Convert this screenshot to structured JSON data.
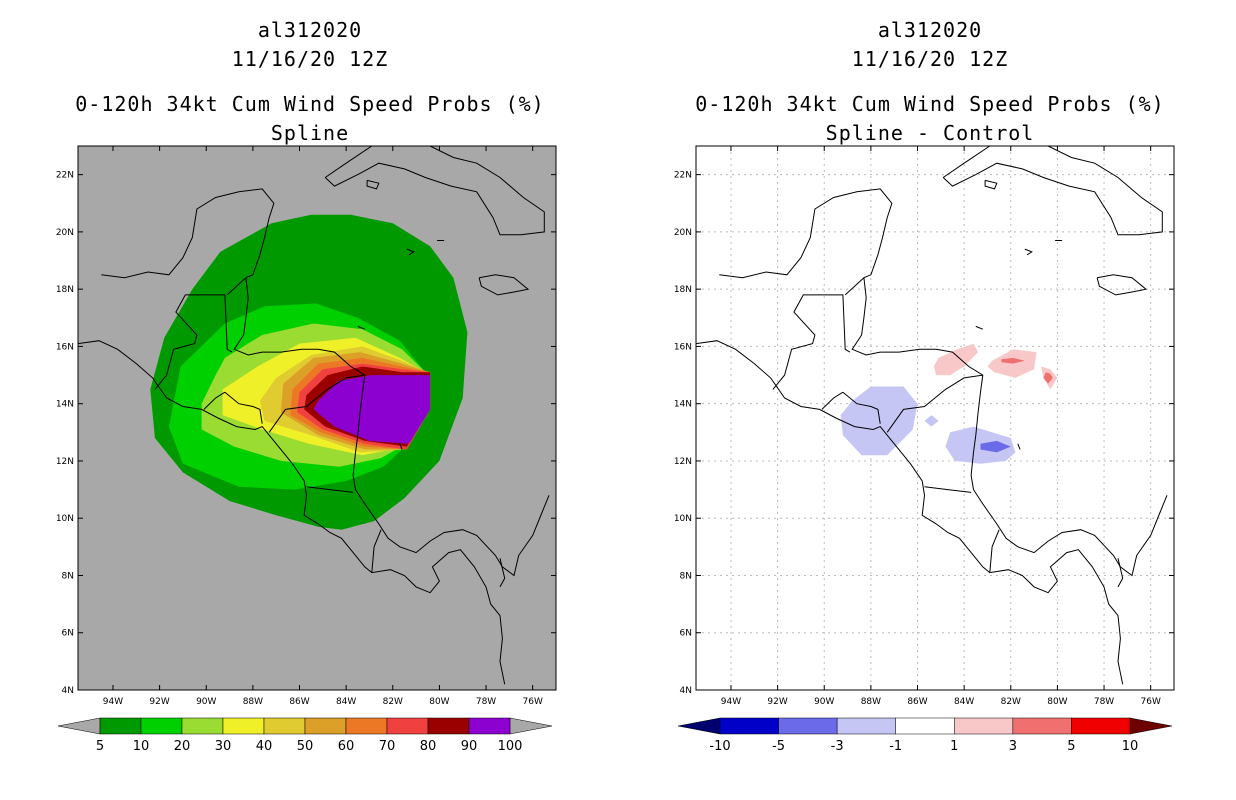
{
  "colors": {
    "land_bg": "#a8a8a8",
    "coast": "#000000",
    "grid": "#bbbbbb"
  },
  "panels": [
    {
      "id": "left",
      "title_lines": [
        "al312020",
        "11/16/20 12Z"
      ],
      "subtitle_lines": [
        "0-120h 34kt Cum Wind Speed Probs (%)",
        "Spline"
      ]
    },
    {
      "id": "right",
      "title_lines": [
        "al312020",
        "11/16/20 12Z"
      ],
      "subtitle_lines": [
        "0-120h 34kt Cum Wind Speed Probs (%)",
        "Spline - Control"
      ]
    }
  ],
  "chart_data": [
    {
      "type": "heatmap",
      "title": "0-120h 34kt Cum Wind Speed Probs (%) — Spline",
      "storm": "al312020",
      "date": "11/16/20 12Z",
      "xlim": [
        -95.5,
        -75
      ],
      "ylim": [
        4,
        23
      ],
      "x_ticks": [
        -94,
        -92,
        -90,
        -88,
        -86,
        -84,
        -82,
        -80,
        -78,
        -76
      ],
      "x_tick_labels": [
        "94W",
        "92W",
        "90W",
        "88W",
        "86W",
        "84W",
        "82W",
        "80W",
        "78W",
        "76W"
      ],
      "y_ticks": [
        4,
        6,
        8,
        10,
        12,
        14,
        16,
        18,
        20,
        22
      ],
      "y_tick_labels": [
        "4N",
        "6N",
        "8N",
        "10N",
        "12N",
        "14N",
        "16N",
        "18N",
        "20N",
        "22N"
      ],
      "grid": false,
      "colorbar": {
        "levels": [
          "5",
          "10",
          "20",
          "30",
          "40",
          "50",
          "60",
          "70",
          "80",
          "90",
          "100"
        ],
        "colors": [
          "#009a00",
          "#00d000",
          "#9adc32",
          "#f0f028",
          "#e0cc30",
          "#dca028",
          "#ec7826",
          "#f04040",
          "#9a0000",
          "#8c00d0"
        ],
        "under_color": "#a8a8a8",
        "over_color": "#a8a8a8"
      },
      "contours": [
        {
          "level": 5,
          "color": "#009a00",
          "lon": [
            -89.4,
            -87.2,
            -85.5,
            -83.8,
            -82,
            -80.4,
            -79.4,
            -78.8,
            -79,
            -80,
            -81.5,
            -82.8,
            -84.2,
            -85.2,
            -87,
            -89,
            -91,
            -92.2,
            -92.4,
            -91.8,
            -90.6
          ],
          "lat": [
            19.3,
            20.3,
            20.6,
            20.6,
            20.3,
            19.5,
            18.4,
            16.5,
            14.2,
            12.0,
            10.7,
            9.9,
            9.6,
            9.7,
            10.1,
            10.6,
            11.6,
            12.8,
            14.5,
            16.3,
            18.0
          ]
        },
        {
          "level": 10,
          "color": "#00d000",
          "lon": [
            -89.2,
            -87.5,
            -85.3,
            -83.5,
            -81.7,
            -80.6,
            -80.4,
            -81.2,
            -82.4,
            -84,
            -86.2,
            -88.6,
            -91,
            -91.6,
            -91.1
          ],
          "lat": [
            16.8,
            17.4,
            17.5,
            17.0,
            16.2,
            15.1,
            13.9,
            12.7,
            11.8,
            11.3,
            11.0,
            11.1,
            11.9,
            13.2,
            15.3
          ]
        },
        {
          "level": 20,
          "color": "#9adc32",
          "lon": [
            -89.2,
            -87.6,
            -85.4,
            -83.3,
            -81.6,
            -80.6,
            -80.5,
            -81.2,
            -82.5,
            -84.3,
            -86.8,
            -88.8,
            -90.2,
            -90.2,
            -89.6
          ],
          "lat": [
            15.6,
            16.4,
            16.8,
            16.6,
            15.9,
            15.1,
            14.0,
            12.7,
            12.1,
            11.8,
            12.0,
            12.5,
            13.1,
            14.0,
            15.0
          ]
        },
        {
          "level": 30,
          "color": "#f0f028",
          "lon": [
            -87.8,
            -86,
            -83.6,
            -81.7,
            -80.6,
            -80.5,
            -81.4,
            -83.3,
            -85.6,
            -87.6,
            -89.3,
            -89.3
          ],
          "lat": [
            15.3,
            16.1,
            16.3,
            15.6,
            15.1,
            13.9,
            12.5,
            12.2,
            12.6,
            13.1,
            13.6,
            14.5
          ]
        },
        {
          "level": 40,
          "color": "#e0cc30",
          "lon": [
            -87,
            -85.5,
            -83.3,
            -81.6,
            -80.5,
            -80.5,
            -81.5,
            -83.4,
            -85.5,
            -87.5,
            -87.7
          ],
          "lat": [
            14.9,
            15.7,
            16.0,
            15.5,
            15.1,
            13.8,
            12.4,
            12.3,
            12.9,
            13.4,
            14.1
          ]
        },
        {
          "level": 50,
          "color": "#dca028",
          "lon": [
            -86.7,
            -85.4,
            -83.4,
            -81.6,
            -80.4,
            -80.4,
            -81.4,
            -83.2,
            -85.2,
            -86.8
          ],
          "lat": [
            14.7,
            15.6,
            15.8,
            15.4,
            15.1,
            13.8,
            12.4,
            12.4,
            12.9,
            13.7
          ]
        },
        {
          "level": 60,
          "color": "#ec7826",
          "lon": [
            -86.3,
            -85.2,
            -83.3,
            -81.6,
            -80.4,
            -80.4,
            -81.4,
            -83.2,
            -85.1,
            -86.4
          ],
          "lat": [
            14.5,
            15.4,
            15.6,
            15.3,
            15.1,
            13.8,
            12.4,
            12.5,
            13.0,
            13.6
          ]
        },
        {
          "level": 70,
          "color": "#f04040",
          "lon": [
            -86,
            -85,
            -83.3,
            -81.6,
            -80.4,
            -80.4,
            -81.4,
            -83.2,
            -85,
            -86.1
          ],
          "lat": [
            14.4,
            15.2,
            15.4,
            15.2,
            15.1,
            13.8,
            12.4,
            12.6,
            13.1,
            13.7
          ]
        },
        {
          "level": 80,
          "color": "#9a0000",
          "lon": [
            -85.7,
            -84.8,
            -83.3,
            -81.6,
            -80.4,
            -80.4,
            -81.4,
            -83.2,
            -84.9,
            -85.8
          ],
          "lat": [
            14.3,
            15.0,
            15.3,
            15.1,
            15.1,
            13.8,
            12.5,
            12.7,
            13.2,
            13.8
          ]
        },
        {
          "level": 90,
          "color": "#8c00d0",
          "lon": [
            -85.2,
            -84.3,
            -82.9,
            -81.4,
            -80.4,
            -80.4,
            -81.3,
            -83,
            -84.5,
            -85.4
          ],
          "lat": [
            14.1,
            14.8,
            15.0,
            15.0,
            15.0,
            13.8,
            12.6,
            12.7,
            13.2,
            13.8
          ]
        }
      ]
    },
    {
      "type": "heatmap",
      "title": "0-120h 34kt Cum Wind Speed Probs (%) — Spline - Control",
      "storm": "al312020",
      "date": "11/16/20 12Z",
      "xlim": [
        -95.5,
        -75
      ],
      "ylim": [
        4,
        23
      ],
      "x_ticks": [
        -94,
        -92,
        -90,
        -88,
        -86,
        -84,
        -82,
        -80,
        -78,
        -76
      ],
      "x_tick_labels": [
        "94W",
        "92W",
        "90W",
        "88W",
        "86W",
        "84W",
        "82W",
        "80W",
        "78W",
        "76W"
      ],
      "y_ticks": [
        4,
        6,
        8,
        10,
        12,
        14,
        16,
        18,
        20,
        22
      ],
      "y_tick_labels": [
        "4N",
        "6N",
        "8N",
        "10N",
        "12N",
        "14N",
        "16N",
        "18N",
        "20N",
        "22N"
      ],
      "grid": true,
      "colorbar": {
        "levels": [
          "-10",
          "-5",
          "-3",
          "-1",
          "1",
          "3",
          "5",
          "10"
        ],
        "colors": [
          "#0000c8",
          "#6b6bea",
          "#c6c6f4",
          "#ffffff",
          "#f8c8c8",
          "#f07070",
          "#f00000"
        ],
        "under_color": "#00006e",
        "over_color": "#6e0000"
      },
      "contours": [
        {
          "level": -1,
          "color": "#c6c6f4",
          "lon": [
            -88.8,
            -88,
            -86.6,
            -86,
            -86.2,
            -87.3,
            -88.4,
            -89.2,
            -89.3
          ],
          "lat": [
            14.1,
            14.6,
            14.6,
            14.0,
            13.1,
            12.2,
            12.2,
            12.9,
            13.6
          ]
        },
        {
          "level": -1,
          "color": "#c6c6f4",
          "lon": [
            -84.6,
            -83.6,
            -82,
            -81.8,
            -82.2,
            -83.3,
            -84.4,
            -84.8
          ],
          "lat": [
            13.0,
            13.2,
            12.8,
            12.3,
            12.0,
            11.9,
            12.0,
            12.5
          ]
        },
        {
          "level": -3,
          "color": "#6b6bea",
          "lon": [
            -83.3,
            -82.6,
            -82.0,
            -82.6,
            -83.3
          ],
          "lat": [
            12.6,
            12.7,
            12.5,
            12.3,
            12.4
          ]
        },
        {
          "level": -1,
          "color": "#c6c6f4",
          "lon": [
            -85.4,
            -85.1,
            -85.4,
            -85.7
          ],
          "lat": [
            13.6,
            13.4,
            13.2,
            13.4
          ]
        },
        {
          "level": 1,
          "color": "#f8c8c8",
          "lon": [
            -85.1,
            -84.3,
            -83.6,
            -83.4,
            -84,
            -84.6,
            -85.2,
            -85.3
          ],
          "lat": [
            15.6,
            15.9,
            16.1,
            15.8,
            15.3,
            15.0,
            15.0,
            15.3
          ]
        },
        {
          "level": 1,
          "color": "#f8c8c8",
          "lon": [
            -82.8,
            -81.9,
            -80.9,
            -81.0,
            -81.8,
            -82.7,
            -83.0
          ],
          "lat": [
            15.5,
            15.9,
            15.8,
            15.2,
            14.9,
            15.1,
            15.3
          ]
        },
        {
          "level": 3,
          "color": "#f07070",
          "lon": [
            -82.4,
            -81.9,
            -81.4,
            -81.9,
            -82.4
          ],
          "lat": [
            15.55,
            15.6,
            15.5,
            15.4,
            15.45
          ]
        },
        {
          "level": 1,
          "color": "#f8c8c8",
          "lon": [
            -80.7,
            -80.3,
            -80.0,
            -80.3,
            -80.6
          ],
          "lat": [
            15.3,
            15.2,
            14.9,
            14.5,
            14.9
          ]
        },
        {
          "level": 3,
          "color": "#f07070",
          "lon": [
            -80.5,
            -80.3,
            -80.2,
            -80.4,
            -80.6
          ],
          "lat": [
            15.1,
            15.05,
            14.9,
            14.7,
            14.9
          ]
        }
      ]
    }
  ]
}
